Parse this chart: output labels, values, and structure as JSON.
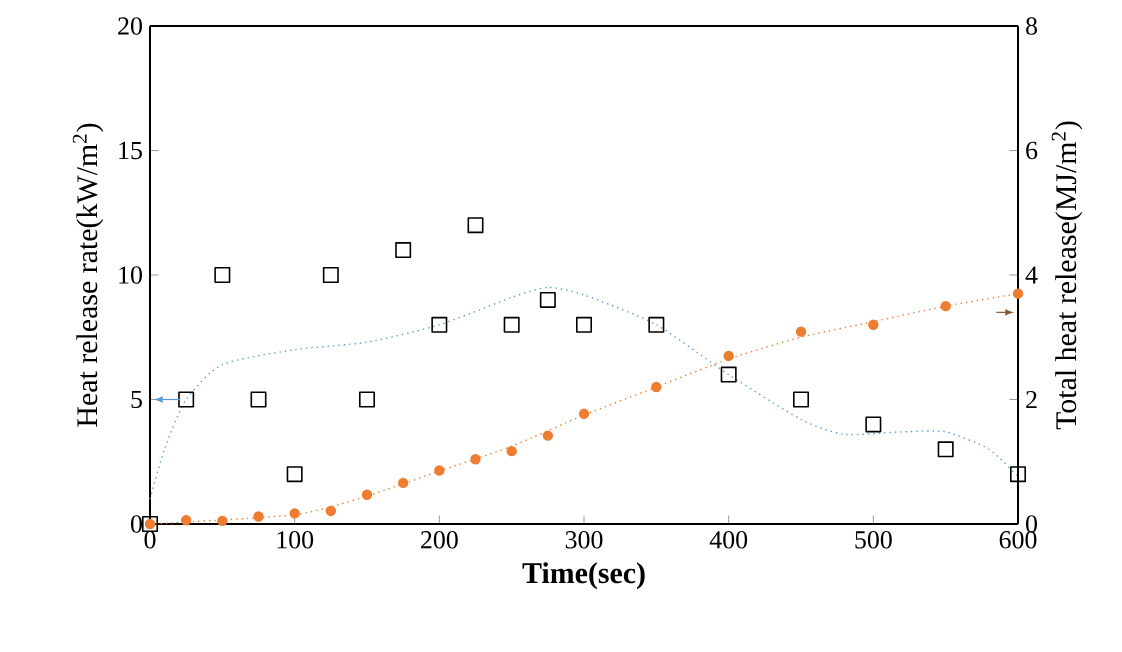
{
  "chart_data": {
    "type": "scatter",
    "xlabel": "**Time(sec)**",
    "ylabel": "Heat release rate(kW/m$^{2}$)",
    "y2label": "Total heat release(MJ/m$^{2}$)",
    "xlim": [
      0,
      600
    ],
    "xticks": [
      0,
      100,
      200,
      300,
      400,
      500,
      600
    ],
    "ylim": [
      0,
      20
    ],
    "yticks": [
      0,
      5,
      10,
      15,
      20
    ],
    "y2lim": [
      0,
      8
    ],
    "y2ticks": [
      0,
      2,
      4,
      6,
      8
    ],
    "series": [
      {
        "marker": "square",
        "color": "#000000",
        "x": [
          0,
          25,
          50,
          75,
          100,
          125,
          150,
          175,
          200,
          225,
          250,
          275,
          300,
          350,
          400,
          450,
          500,
          550,
          600
        ],
        "values": [
          0,
          5,
          10,
          5,
          2,
          10,
          5,
          11,
          8,
          12,
          8,
          9,
          8,
          8,
          6,
          5,
          4,
          3,
          2
        ]
      },
      {
        "type": "line",
        "marker": "none",
        "line_style": "dotted",
        "color": "#5b9bd5",
        "x": [
          0,
          10,
          25,
          50,
          100,
          150,
          200,
          250,
          275,
          300,
          350,
          400,
          450,
          480,
          520,
          550,
          580,
          600
        ],
        "values": [
          1,
          3,
          5,
          6.4,
          7,
          7.3,
          8,
          9.1,
          9.5,
          9.2,
          8,
          6,
          4.2,
          3.6,
          3.7,
          3.7,
          3,
          1.9
        ]
      },
      {
        "axis": "y2",
        "marker": "circle",
        "color": "#ed7d31",
        "x": [
          0,
          25,
          50,
          75,
          100,
          125,
          150,
          175,
          200,
          225,
          250,
          275,
          300,
          350,
          400,
          450,
          500,
          550,
          600
        ],
        "values": [
          0,
          0.06,
          0.05,
          0.12,
          0.17,
          0.21,
          0.47,
          0.66,
          0.86,
          1.04,
          1.17,
          1.42,
          1.77,
          2.2,
          2.7,
          3.09,
          3.2,
          3.5,
          3.7
        ]
      },
      {
        "type": "line",
        "axis": "y2",
        "marker": "none",
        "line_style": "dotted",
        "color": "#ed7d31",
        "x": [
          0,
          100,
          150,
          200,
          250,
          300,
          350,
          400,
          450,
          500,
          550,
          600
        ],
        "values": [
          0,
          0.15,
          0.45,
          0.85,
          1.25,
          1.75,
          2.2,
          2.65,
          3.0,
          3.25,
          3.5,
          3.7
        ]
      }
    ]
  }
}
